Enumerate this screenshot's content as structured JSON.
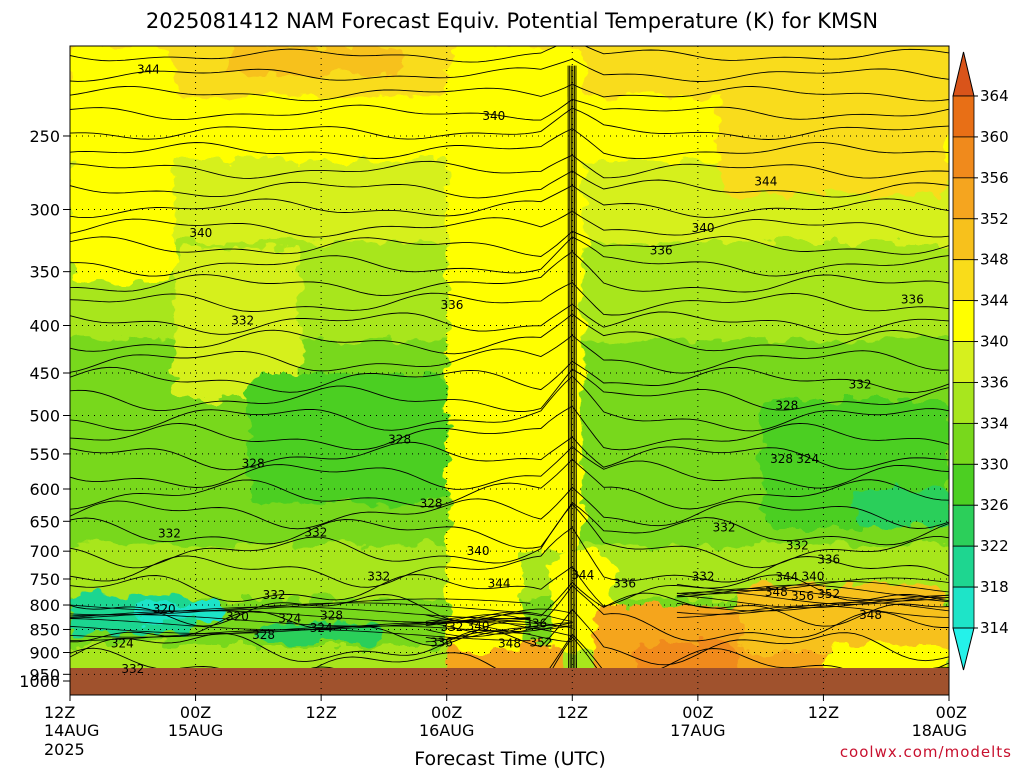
{
  "chart_data": {
    "type": "contour",
    "title": "2025081412 NAM Forecast Equiv. Potential Temperature (K) for KMSN",
    "xlabel": "Forecast Time (UTC)",
    "ylabel": "",
    "y_scale": "log",
    "y_reversed": true,
    "x_ticks": [
      {
        "t": 0,
        "label": "12Z",
        "date": "14AUG",
        "year": "2025"
      },
      {
        "t": 12,
        "label": "00Z",
        "date": "15AUG",
        "year": ""
      },
      {
        "t": 24,
        "label": "12Z",
        "date": "",
        "year": ""
      },
      {
        "t": 36,
        "label": "00Z",
        "date": "16AUG",
        "year": ""
      },
      {
        "t": 48,
        "label": "12Z",
        "date": "",
        "year": ""
      },
      {
        "t": 60,
        "label": "00Z",
        "date": "17AUG",
        "year": ""
      },
      {
        "t": 72,
        "label": "12Z",
        "date": "",
        "year": ""
      },
      {
        "t": 84,
        "label": "00Z",
        "date": "18AUG",
        "year": ""
      }
    ],
    "x_range_hours": [
      0,
      84
    ],
    "y_ticks": [
      250,
      300,
      350,
      400,
      450,
      500,
      550,
      600,
      650,
      700,
      750,
      800,
      850,
      900,
      950,
      1000
    ],
    "y_range": [
      200,
      1000
    ],
    "grid": true,
    "colorbar": {
      "ticks": [
        364,
        360,
        356,
        352,
        348,
        344,
        340,
        336,
        334,
        330,
        326,
        322,
        318,
        314
      ],
      "colors": [
        "#d9541a",
        "#e86f16",
        "#f08a1c",
        "#f5a51f",
        "#f7c11c",
        "#f9dc1a",
        "#ffff00",
        "#d6f01e",
        "#a8e61e",
        "#78d81c",
        "#4ccf22",
        "#2ccf5a",
        "#1ed690",
        "#1ee4c8",
        "#24f2ea"
      ]
    },
    "contour_labels": [
      {
        "t": 7.5,
        "p": 212,
        "v": "344"
      },
      {
        "t": 40.5,
        "p": 238,
        "v": "340"
      },
      {
        "t": 66.5,
        "p": 280,
        "v": "344"
      },
      {
        "t": 12.5,
        "p": 318,
        "v": "340"
      },
      {
        "t": 60.5,
        "p": 314,
        "v": "340"
      },
      {
        "t": 56.5,
        "p": 332,
        "v": "336"
      },
      {
        "t": 80.5,
        "p": 375,
        "v": "336"
      },
      {
        "t": 36.5,
        "p": 380,
        "v": "336"
      },
      {
        "t": 16.5,
        "p": 395,
        "v": "332"
      },
      {
        "t": 75.5,
        "p": 463,
        "v": "332"
      },
      {
        "t": 68.5,
        "p": 488,
        "v": "328"
      },
      {
        "t": 31.5,
        "p": 531,
        "v": "328"
      },
      {
        "t": 17.5,
        "p": 563,
        "v": "328"
      },
      {
        "t": 68.0,
        "p": 557,
        "v": "328"
      },
      {
        "t": 70.5,
        "p": 557,
        "v": "324"
      },
      {
        "t": 34.5,
        "p": 622,
        "v": "328"
      },
      {
        "t": 9.5,
        "p": 670,
        "v": "332"
      },
      {
        "t": 23.5,
        "p": 668,
        "v": "332"
      },
      {
        "t": 62.5,
        "p": 660,
        "v": "332"
      },
      {
        "t": 69.5,
        "p": 690,
        "v": "332"
      },
      {
        "t": 39.0,
        "p": 700,
        "v": "340"
      },
      {
        "t": 72.5,
        "p": 715,
        "v": "336"
      },
      {
        "t": 60.5,
        "p": 745,
        "v": "332"
      },
      {
        "t": 29.5,
        "p": 745,
        "v": "332"
      },
      {
        "t": 68.5,
        "p": 746,
        "v": "344"
      },
      {
        "t": 71.0,
        "p": 745,
        "v": "340"
      },
      {
        "t": 49.0,
        "p": 743,
        "v": "344"
      },
      {
        "t": 41.0,
        "p": 758,
        "v": "344"
      },
      {
        "t": 53.0,
        "p": 758,
        "v": "336"
      },
      {
        "t": 19.5,
        "p": 780,
        "v": "332"
      },
      {
        "t": 67.5,
        "p": 775,
        "v": "348"
      },
      {
        "t": 70.0,
        "p": 782,
        "v": "356"
      },
      {
        "t": 72.5,
        "p": 778,
        "v": "352"
      },
      {
        "t": 9.0,
        "p": 808,
        "v": "320"
      },
      {
        "t": 16.0,
        "p": 823,
        "v": "320"
      },
      {
        "t": 21.0,
        "p": 827,
        "v": "324"
      },
      {
        "t": 25.0,
        "p": 821,
        "v": "328"
      },
      {
        "t": 24.0,
        "p": 847,
        "v": "324"
      },
      {
        "t": 18.5,
        "p": 862,
        "v": "328"
      },
      {
        "t": 76.5,
        "p": 820,
        "v": "348"
      },
      {
        "t": 36.5,
        "p": 845,
        "v": "332"
      },
      {
        "t": 39.0,
        "p": 843,
        "v": "340"
      },
      {
        "t": 44.5,
        "p": 838,
        "v": "336"
      },
      {
        "t": 35.5,
        "p": 878,
        "v": "336"
      },
      {
        "t": 42.0,
        "p": 880,
        "v": "348"
      },
      {
        "t": 45.0,
        "p": 878,
        "v": "352"
      },
      {
        "t": 5.0,
        "p": 880,
        "v": "324"
      },
      {
        "t": 6.0,
        "p": 938,
        "v": "332"
      },
      {
        "t": 48.0,
        "p": 743,
        "v": ""
      }
    ]
  },
  "credit": "coolwx.com/modelts"
}
